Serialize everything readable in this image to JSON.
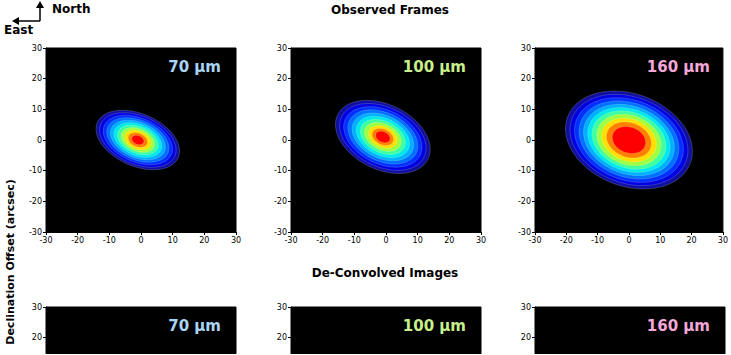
{
  "figure": {
    "compass": {
      "north": "North",
      "east": "East"
    },
    "row_titles": [
      "Observed Frames",
      "De-Convolved Images"
    ],
    "ylabel": "Declination Offset (arcsec)"
  },
  "chart_data": [
    {
      "type": "contour",
      "title": "70 μm",
      "color": "#a9d4f5",
      "xlim": [
        -30,
        30
      ],
      "ylim": [
        -30,
        30
      ],
      "xticks": [
        -30,
        -20,
        -10,
        0,
        10,
        20,
        30
      ],
      "yticks": [
        -30,
        -20,
        -10,
        0,
        10,
        20,
        30
      ],
      "contours": {
        "center": [
          -1,
          0
        ],
        "angle": -25,
        "a": [
          14,
          12.8,
          11.6,
          10.4,
          9.2,
          8,
          6.8,
          5.6,
          4.4,
          3.2,
          2
        ],
        "b": [
          8.5,
          7.8,
          7.1,
          6.4,
          5.7,
          5,
          4.3,
          3.6,
          2.9,
          2.2,
          1.4
        ],
        "colors": [
          "#1010a0",
          "#0000e0",
          "#0030ff",
          "#0070ff",
          "#00b0ff",
          "#00e8e8",
          "#40ffa0",
          "#a0ff40",
          "#ffe000",
          "#ff8000",
          "#ff0000"
        ]
      }
    },
    {
      "type": "contour",
      "title": "100 μm",
      "color": "#c8f08a",
      "xlim": [
        -30,
        30
      ],
      "ylim": [
        -30,
        30
      ],
      "xticks": [
        -30,
        -20,
        -10,
        0,
        10,
        20,
        30
      ],
      "yticks": [
        -30,
        -20,
        -10,
        0,
        10,
        20,
        30
      ],
      "contours": {
        "center": [
          -1,
          1
        ],
        "angle": -28,
        "a": [
          16,
          14.6,
          13.2,
          11.8,
          10.4,
          9,
          7.6,
          6.2,
          4.8,
          3.6,
          2.4
        ],
        "b": [
          10.5,
          9.6,
          8.7,
          7.8,
          6.9,
          6,
          5.1,
          4.2,
          3.3,
          2.5,
          1.7
        ],
        "colors": [
          "#1010a0",
          "#0000e0",
          "#0030ff",
          "#0070ff",
          "#00b0ff",
          "#00e8e8",
          "#40ffa0",
          "#a0ff40",
          "#ffe000",
          "#ff8000",
          "#ff0000"
        ]
      }
    },
    {
      "type": "contour",
      "title": "160 μm",
      "color": "#f5a8d8",
      "xlim": [
        -30,
        30
      ],
      "ylim": [
        -30,
        30
      ],
      "xticks": [
        -30,
        -20,
        -10,
        0,
        10,
        20,
        30
      ],
      "yticks": [
        -30,
        -20,
        -10,
        0,
        10,
        20,
        30
      ],
      "contours": {
        "center": [
          0,
          0
        ],
        "angle": -22,
        "a": [
          21,
          19.5,
          18,
          16.5,
          15,
          13.6,
          12.2,
          10.6,
          9,
          7.4,
          5.5
        ],
        "b": [
          15,
          14,
          13,
          12,
          11,
          10,
          9,
          8,
          6.8,
          5.6,
          4.2
        ],
        "colors": [
          "#1010a0",
          "#0000e0",
          "#0030ff",
          "#0070ff",
          "#00b0ff",
          "#00e8e8",
          "#40ffa0",
          "#a0ff40",
          "#ffe000",
          "#ff8000",
          "#ff0000"
        ]
      }
    },
    {
      "type": "contour",
      "title": "70 μm",
      "color": "#a9d4f5",
      "xlim": [
        -30,
        30
      ],
      "ylim": [
        15,
        30
      ],
      "yticks": [
        20,
        30
      ],
      "tick_labels": "y"
    },
    {
      "type": "contour",
      "title": "100 μm",
      "color": "#c8f08a",
      "xlim": [
        -30,
        30
      ],
      "ylim": [
        15,
        30
      ],
      "yticks": [
        20,
        30
      ],
      "tick_labels": "y"
    },
    {
      "type": "contour",
      "title": "160 μm",
      "color": "#f5a8d8",
      "xlim": [
        -30,
        30
      ],
      "ylim": [
        15,
        30
      ],
      "yticks": [
        20,
        30
      ],
      "tick_labels": "y"
    }
  ]
}
